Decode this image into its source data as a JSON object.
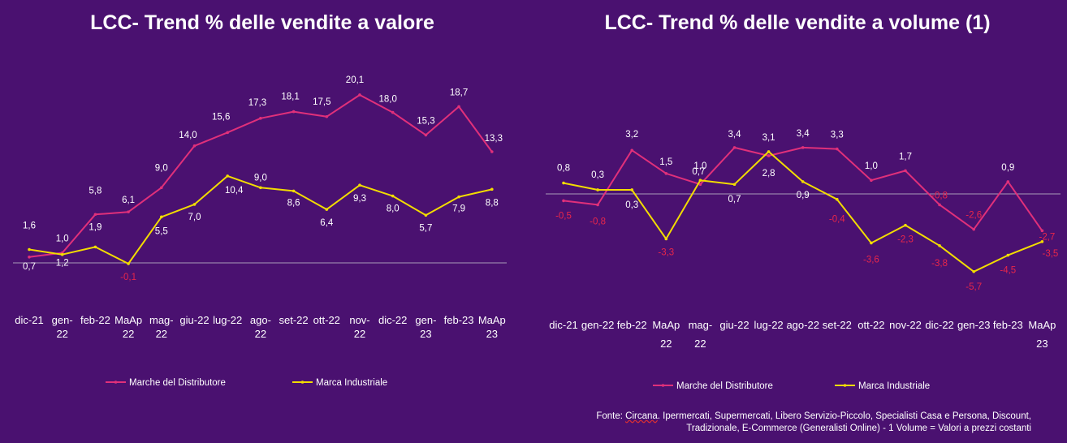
{
  "colors": {
    "background": "#4a1170",
    "private_label": "#e0307a",
    "industrial": "#f2dc00",
    "label_text": "#ffffff",
    "negative_text": "#e8264a",
    "zero_line": "#a89ab8"
  },
  "chart_data": [
    {
      "type": "line",
      "title": "LCC- Trend % delle vendite a valore",
      "categories": [
        "dic-21",
        "gen-22",
        "feb-22",
        "MaAp 22",
        "mag-22",
        "giu-22",
        "lug-22",
        "ago-22",
        "set-22",
        "ott-22",
        "nov-22",
        "dic-22",
        "gen-23",
        "feb-23",
        "MaAp 23"
      ],
      "category_lines": [
        [
          "dic-21"
        ],
        [
          "gen-",
          "22"
        ],
        [
          "feb-22"
        ],
        [
          "MaAp",
          "22"
        ],
        [
          "mag-",
          "22"
        ],
        [
          "giu-22"
        ],
        [
          "lug-22"
        ],
        [
          "ago-",
          "22"
        ],
        [
          "set-22"
        ],
        [
          "ott-22"
        ],
        [
          "nov-",
          "22"
        ],
        [
          "dic-22"
        ],
        [
          "gen-",
          "23"
        ],
        [
          "feb-23"
        ],
        [
          "MaAp",
          "23"
        ]
      ],
      "series": [
        {
          "name": "Marche del Distributore",
          "values": [
            0.7,
            1.2,
            5.8,
            6.1,
            9.0,
            14.0,
            15.6,
            17.3,
            18.1,
            17.5,
            20.1,
            18.0,
            15.3,
            18.7,
            13.3
          ]
        },
        {
          "name": "Marca Industriale",
          "values": [
            1.6,
            1.0,
            1.9,
            -0.1,
            5.5,
            7.0,
            10.4,
            9.0,
            8.6,
            6.4,
            9.3,
            8.0,
            5.7,
            7.9,
            8.8
          ]
        }
      ],
      "ylim": [
        -0.1,
        20.1
      ],
      "grid": false,
      "legend_position": "bottom"
    },
    {
      "type": "line",
      "title": "LCC- Trend % delle vendite a volume (1)",
      "categories": [
        "dic-21",
        "gen-22",
        "feb-22",
        "MaAp 22",
        "mag-22",
        "giu-22",
        "lug-22",
        "ago-22",
        "set-22",
        "ott-22",
        "nov-22",
        "dic-22",
        "gen-23",
        "feb-23",
        "MaAp 23"
      ],
      "category_lines": [
        [
          "dic-21"
        ],
        [
          "gen-22"
        ],
        [
          "feb-22"
        ],
        [
          "MaAp",
          "22"
        ],
        [
          "mag-",
          "22"
        ],
        [
          "giu-22"
        ],
        [
          "lug-22"
        ],
        [
          "ago-22"
        ],
        [
          "set-22"
        ],
        [
          "ott-22"
        ],
        [
          "nov-22"
        ],
        [
          "dic-22"
        ],
        [
          "gen-23"
        ],
        [
          "feb-23"
        ],
        [
          "MaAp",
          "23"
        ]
      ],
      "series": [
        {
          "name": "Marche del Distributore",
          "values": [
            -0.5,
            -0.8,
            3.2,
            1.5,
            0.7,
            3.4,
            2.8,
            3.4,
            3.3,
            1.0,
            1.7,
            -0.8,
            -2.6,
            0.9,
            -2.7
          ]
        },
        {
          "name": "Marca Industriale",
          "values": [
            0.8,
            0.3,
            0.3,
            -3.3,
            1.0,
            0.7,
            3.1,
            0.9,
            -0.4,
            -3.6,
            -2.3,
            -3.8,
            -5.7,
            -4.5,
            -3.5
          ]
        }
      ],
      "ylim": [
        -5.7,
        3.4
      ],
      "grid": false,
      "legend_position": "bottom"
    }
  ],
  "labels": {
    "left": {
      "s0": [
        "0,7",
        "1,2",
        "5,8",
        "6,1",
        "9,0",
        "14,0",
        "15,6",
        "17,3",
        "18,1",
        "17,5",
        "20,1",
        "18,0",
        "15,3",
        "18,7",
        "13,3"
      ],
      "s1": [
        "1,6",
        "1,0",
        "1,9",
        "-0,1",
        "5,5",
        "7,0",
        "10,4",
        "9,0",
        "8,6",
        "6,4",
        "9,3",
        "8,0",
        "5,7",
        "7,9",
        "8,8"
      ]
    },
    "right": {
      "s0": [
        "-0,5",
        "-0,8",
        "3,2",
        "1,5",
        "0,7",
        "3,4",
        "2,8",
        "3,4",
        "3,3",
        "1,0",
        "1,7",
        "-0,8",
        "-2,6",
        "0,9",
        "-2,7"
      ],
      "s1": [
        "0,8",
        "0,3",
        "0,3",
        "-3,3",
        "1,0",
        "0,7",
        "3,1",
        "0,9",
        "-0,4",
        "-3,6",
        "-2,3",
        "-3,8",
        "-5,7",
        "-4,5",
        "-3,5"
      ]
    }
  },
  "source": {
    "prefix": "Fonte: ",
    "brand": "Circana",
    "line1_rest": ". Ipermercati, Supermercati, Libero Servizio-Piccolo, Specialisti Casa e Persona, Discount,",
    "line2": "Tradizionale, E-Commerce (Generalisti Online) -  1 Volume = Valori a prezzi costanti"
  }
}
